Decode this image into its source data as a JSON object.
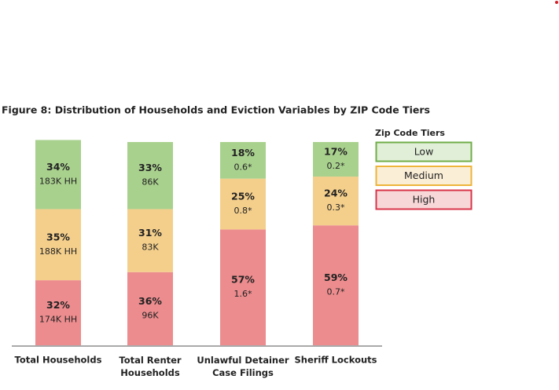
{
  "chart_data": {
    "type": "stacked_bar",
    "title": "Figure 8: Distribution of Households and Eviction Variables by ZIP Code Tiers",
    "categories": [
      "Total Households",
      "Total Renter\nHouseholds",
      "Unlawful Detainer\nCase Filings",
      "Sheriff Lockouts"
    ],
    "series": [
      {
        "name": "Low",
        "color": "#a9d18e",
        "border": "#70ad47",
        "values": [
          34,
          33,
          18,
          17
        ],
        "value_labels": [
          "34%",
          "33%",
          "18%",
          "17%"
        ],
        "sublabels": [
          "183K HH",
          "86K",
          "0.6*",
          "0.2*"
        ]
      },
      {
        "name": "Medium",
        "color": "#f4cf8c",
        "border": "#eeb43a",
        "values": [
          35,
          31,
          25,
          24
        ],
        "value_labels": [
          "35%",
          "31%",
          "25%",
          "24%"
        ],
        "sublabels": [
          "188K HH",
          "83K",
          "0.8*",
          "0.3*"
        ]
      },
      {
        "name": "High",
        "color": "#ec8c8e",
        "border": "#d9344a",
        "values": [
          32,
          36,
          57,
          59
        ],
        "value_labels": [
          "32%",
          "36%",
          "57%",
          "59%"
        ],
        "sublabels": [
          "174K HH",
          "96K",
          "1.6*",
          "0.7*"
        ]
      }
    ],
    "ylim": [
      0,
      100
    ],
    "legend_title": "Zip Code Tiers",
    "legend": "right"
  }
}
